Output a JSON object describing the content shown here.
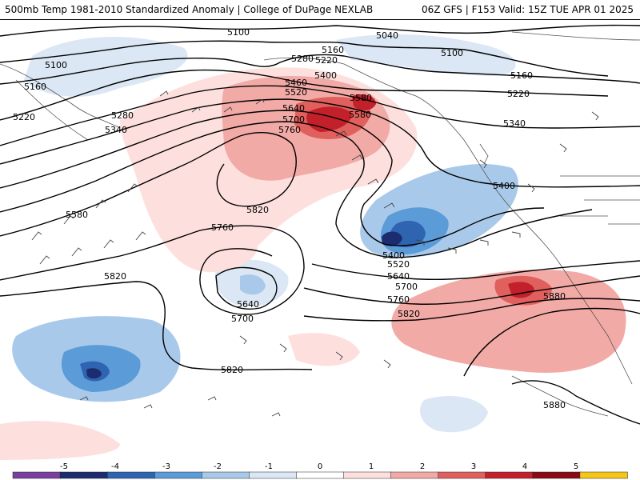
{
  "header": {
    "left_title": "500mb Temp 1981-2010 Standardized Anomaly | College of DuPage NEXLAB",
    "right_title": "06Z GFS | F153 Valid: 15Z TUE APR 01 2025"
  },
  "contour_labels": [
    {
      "text": "5100"
    },
    {
      "text": "5040"
    },
    {
      "text": "5100"
    },
    {
      "text": "5100"
    },
    {
      "text": "5160"
    },
    {
      "text": "5160"
    },
    {
      "text": "5160"
    },
    {
      "text": "5220"
    },
    {
      "text": "5280"
    },
    {
      "text": "5220"
    },
    {
      "text": "5220"
    },
    {
      "text": "5400"
    },
    {
      "text": "5280"
    },
    {
      "text": "5340"
    },
    {
      "text": "5460"
    },
    {
      "text": "5520"
    },
    {
      "text": "5580"
    },
    {
      "text": "5640"
    },
    {
      "text": "5700"
    },
    {
      "text": "5760"
    },
    {
      "text": "5580"
    },
    {
      "text": "5340"
    },
    {
      "text": "5580"
    },
    {
      "text": "5820"
    },
    {
      "text": "5400"
    },
    {
      "text": "5760"
    },
    {
      "text": "5400"
    },
    {
      "text": "5520"
    },
    {
      "text": "5640"
    },
    {
      "text": "5700"
    },
    {
      "text": "5820"
    },
    {
      "text": "5640"
    },
    {
      "text": "5700"
    },
    {
      "text": "5760"
    },
    {
      "text": "5820"
    },
    {
      "text": "5880"
    },
    {
      "text": "5820"
    },
    {
      "text": "5880"
    }
  ],
  "colorbar": {
    "ticks": [
      "-5",
      "-4",
      "-3",
      "-2",
      "-1",
      "0",
      "1",
      "2",
      "3",
      "4",
      "5"
    ],
    "colors": [
      "#7b3fa0",
      "#1c2c6e",
      "#2f64b0",
      "#5b9bd8",
      "#a9c9ea",
      "#dbe7f5",
      "#ffffff",
      "#fde0de",
      "#f2aaa6",
      "#e0605e",
      "#c2202b",
      "#8b0b14",
      "#f5c518"
    ]
  }
}
